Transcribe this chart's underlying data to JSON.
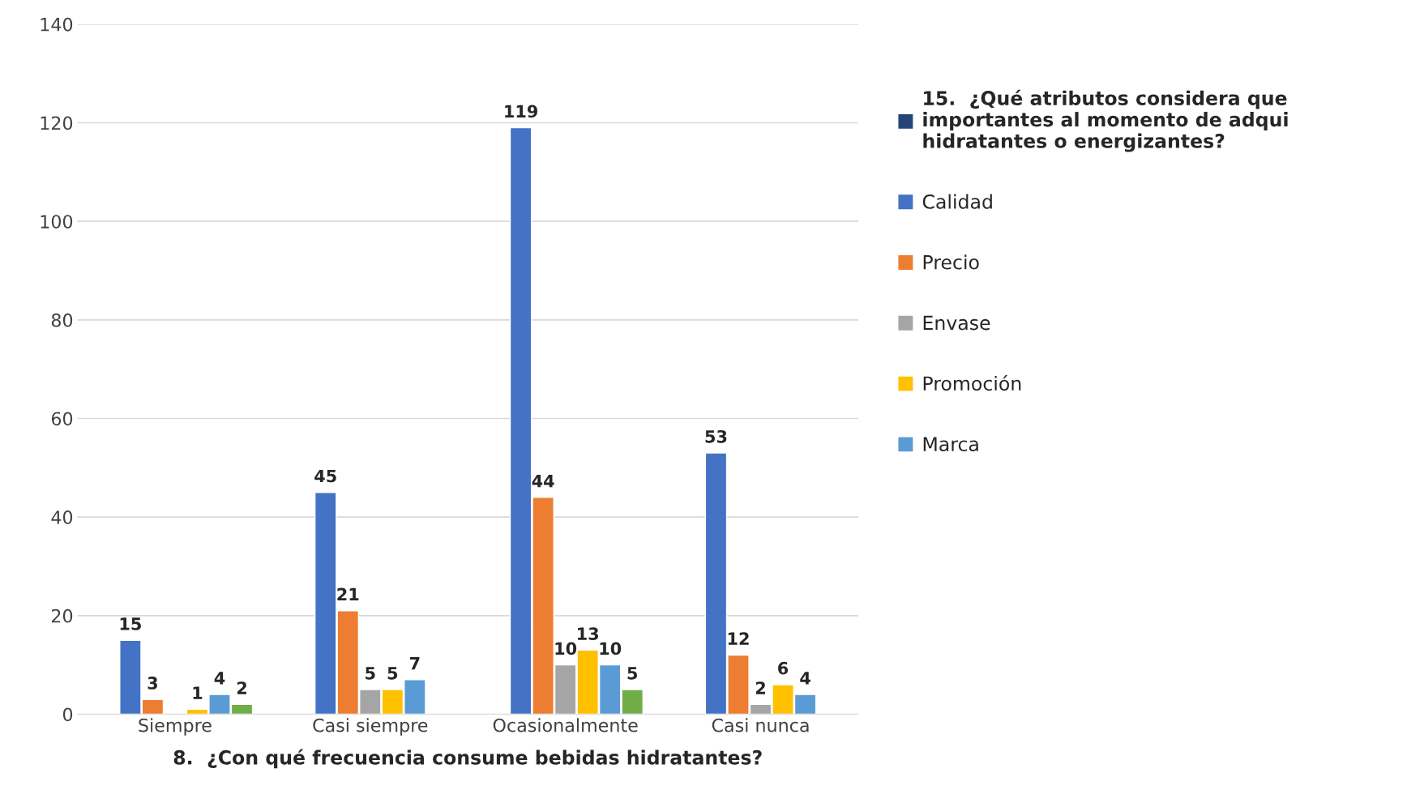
{
  "chart_data": {
    "type": "bar",
    "xlabel": "8.  ¿Con qué frecuencia consume bebidas hidratantes?",
    "categories": [
      "Siempre",
      "Casi siempre",
      "Ocasionalmente",
      "Casi nunca"
    ],
    "series": [
      {
        "name": "15.  ¿Qué atributos considera que\nimportantes al momento de adqui\nhidratantes o energizantes?",
        "color": "#264478",
        "values": [
          null,
          null,
          null,
          null
        ]
      },
      {
        "name": "Calidad",
        "color": "#4472c4",
        "values": [
          15,
          45,
          119,
          53
        ]
      },
      {
        "name": "Precio",
        "color": "#ed7d31",
        "values": [
          3,
          21,
          44,
          12
        ]
      },
      {
        "name": "Envase",
        "color": "#a5a5a5",
        "values": [
          null,
          5,
          10,
          2
        ]
      },
      {
        "name": "Promoción",
        "color": "#ffc000",
        "values": [
          1,
          5,
          13,
          6
        ]
      },
      {
        "name": "Marca",
        "color": "#5b9bd5",
        "values": [
          4,
          7,
          10,
          4
        ]
      },
      {
        "color": "#70ad47",
        "values": [
          2,
          null,
          5,
          null
        ]
      }
    ],
    "ylim": [
      0,
      140
    ],
    "yticks": [
      0,
      20,
      40,
      60,
      80,
      100,
      120,
      140
    ],
    "grid": "y",
    "legend": "right",
    "data_labels": true
  }
}
